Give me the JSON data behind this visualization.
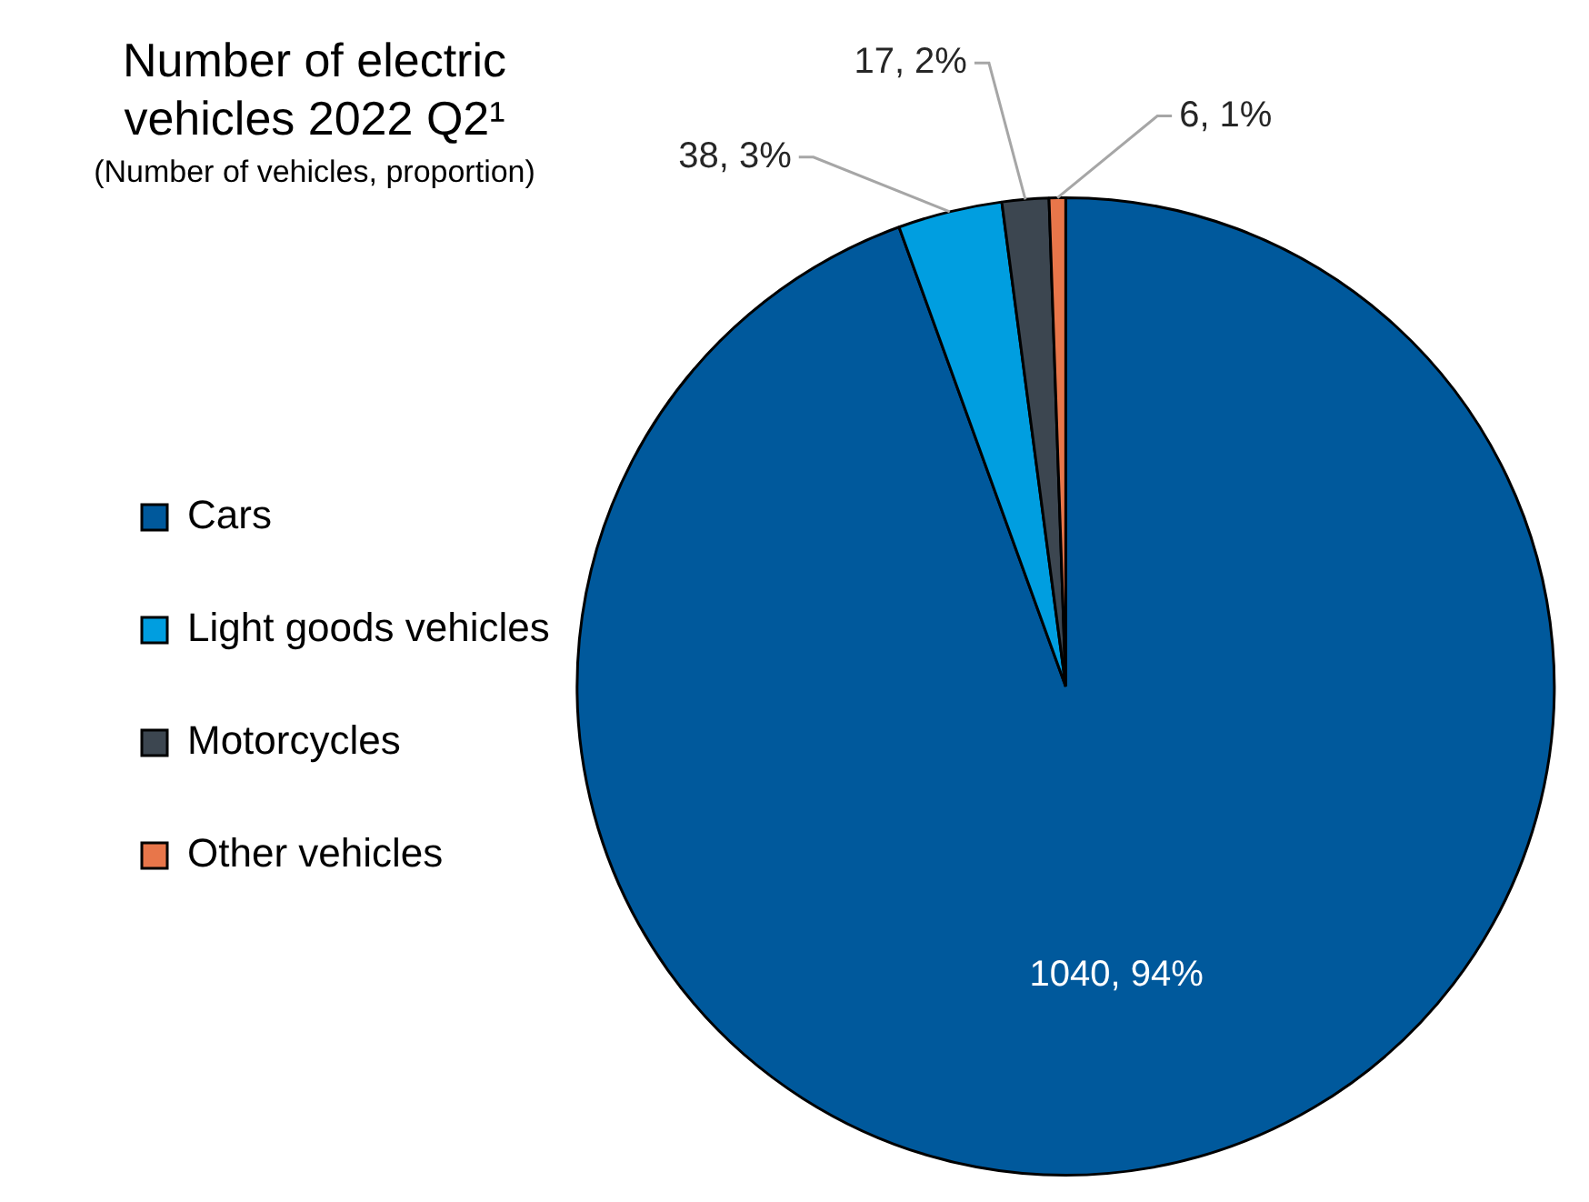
{
  "chart_data": {
    "type": "pie",
    "title": "Number of electric vehicles 2022 Q2¹",
    "subtitle": "(Number of vehicles, proportion)",
    "categories": [
      "Cars",
      "Light goods vehicles",
      "Motorcycles",
      "Other vehicles"
    ],
    "values": [
      1040,
      38,
      17,
      6
    ],
    "colors": [
      "#00599c",
      "#009ee0",
      "#3c4650",
      "#e8764a"
    ],
    "value_labels": [
      "1040, 94%",
      "38, 3%",
      "17, 2%",
      "6, 1%"
    ],
    "legend": "left"
  }
}
